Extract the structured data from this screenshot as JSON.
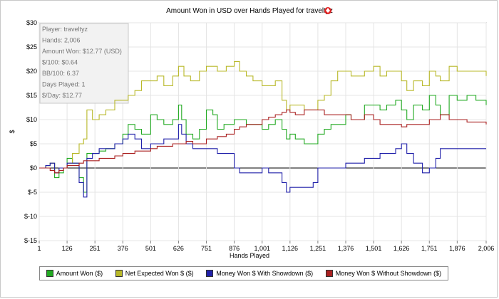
{
  "chart_data": {
    "type": "line",
    "title": "Amount Won in USD over Hands Played for traveltyz",
    "xlabel": "Hands Played",
    "ylabel": "$",
    "xlim": [
      1,
      2006
    ],
    "ylim": [
      -15,
      30
    ],
    "xticks": [
      "1",
      "126",
      "251",
      "376",
      "501",
      "626",
      "751",
      "876",
      "1,001",
      "1,126",
      "1,251",
      "1,376",
      "1,501",
      "1,626",
      "1,751",
      "1,876",
      "2,006"
    ],
    "xtick_values": [
      1,
      126,
      251,
      376,
      501,
      626,
      751,
      876,
      1001,
      1126,
      1251,
      1376,
      1501,
      1626,
      1751,
      1876,
      2006
    ],
    "yticks": [
      "$30",
      "$25",
      "$20",
      "$15",
      "$10",
      "$5",
      "$0",
      "$-5",
      "$-10",
      "$-15"
    ],
    "ytick_values": [
      30,
      25,
      20,
      15,
      10,
      5,
      0,
      -5,
      -10,
      -15
    ],
    "grid": true,
    "legend_position": "bottom",
    "series": [
      {
        "name": "Amount Won ($)",
        "color": "#22aa22",
        "points": [
          [
            1,
            0
          ],
          [
            30,
            0.5
          ],
          [
            50,
            1
          ],
          [
            70,
            -2
          ],
          [
            90,
            -1
          ],
          [
            110,
            0
          ],
          [
            126,
            2
          ],
          [
            150,
            1
          ],
          [
            180,
            -2
          ],
          [
            200,
            -5
          ],
          [
            215,
            3
          ],
          [
            240,
            3
          ],
          [
            270,
            3.5
          ],
          [
            300,
            4
          ],
          [
            340,
            5
          ],
          [
            376,
            7
          ],
          [
            400,
            9
          ],
          [
            430,
            8
          ],
          [
            460,
            7
          ],
          [
            501,
            11
          ],
          [
            530,
            10
          ],
          [
            560,
            9
          ],
          [
            600,
            10
          ],
          [
            626,
            13
          ],
          [
            640,
            10
          ],
          [
            660,
            7
          ],
          [
            690,
            6
          ],
          [
            720,
            8
          ],
          [
            751,
            12
          ],
          [
            780,
            11
          ],
          [
            800,
            8
          ],
          [
            830,
            9
          ],
          [
            876,
            10
          ],
          [
            900,
            10
          ],
          [
            930,
            9
          ],
          [
            960,
            9
          ],
          [
            1001,
            8
          ],
          [
            1030,
            9
          ],
          [
            1060,
            10
          ],
          [
            1090,
            8
          ],
          [
            1110,
            6
          ],
          [
            1126,
            7
          ],
          [
            1150,
            6
          ],
          [
            1190,
            5
          ],
          [
            1230,
            5
          ],
          [
            1251,
            7
          ],
          [
            1280,
            8
          ],
          [
            1310,
            9
          ],
          [
            1340,
            9
          ],
          [
            1376,
            11
          ],
          [
            1400,
            10
          ],
          [
            1430,
            10
          ],
          [
            1460,
            13
          ],
          [
            1501,
            13
          ],
          [
            1530,
            12
          ],
          [
            1560,
            13
          ],
          [
            1600,
            14
          ],
          [
            1626,
            12
          ],
          [
            1650,
            10
          ],
          [
            1680,
            13
          ],
          [
            1720,
            12
          ],
          [
            1751,
            15
          ],
          [
            1780,
            13
          ],
          [
            1800,
            11
          ],
          [
            1840,
            15
          ],
          [
            1876,
            14
          ],
          [
            1920,
            15
          ],
          [
            1960,
            14
          ],
          [
            2006,
            13
          ]
        ]
      },
      {
        "name": "Net Expected Won $ ($)",
        "color": "#b8b828",
        "points": [
          [
            1,
            0
          ],
          [
            30,
            0.5
          ],
          [
            50,
            1
          ],
          [
            70,
            -1
          ],
          [
            90,
            0
          ],
          [
            110,
            0
          ],
          [
            126,
            1
          ],
          [
            150,
            3
          ],
          [
            180,
            5
          ],
          [
            200,
            6
          ],
          [
            215,
            12
          ],
          [
            240,
            10
          ],
          [
            270,
            11
          ],
          [
            300,
            12
          ],
          [
            340,
            14
          ],
          [
            376,
            14
          ],
          [
            400,
            15
          ],
          [
            430,
            16
          ],
          [
            460,
            18
          ],
          [
            501,
            18
          ],
          [
            530,
            19
          ],
          [
            560,
            17
          ],
          [
            600,
            19
          ],
          [
            626,
            21
          ],
          [
            650,
            19
          ],
          [
            680,
            18
          ],
          [
            720,
            20
          ],
          [
            751,
            21
          ],
          [
            780,
            21
          ],
          [
            800,
            20
          ],
          [
            840,
            21
          ],
          [
            876,
            22
          ],
          [
            900,
            20
          ],
          [
            930,
            19
          ],
          [
            960,
            18
          ],
          [
            1001,
            17
          ],
          [
            1030,
            17
          ],
          [
            1060,
            18
          ],
          [
            1090,
            14
          ],
          [
            1110,
            12
          ],
          [
            1126,
            13
          ],
          [
            1150,
            13
          ],
          [
            1190,
            12
          ],
          [
            1230,
            12
          ],
          [
            1251,
            14
          ],
          [
            1280,
            15
          ],
          [
            1310,
            18
          ],
          [
            1340,
            20
          ],
          [
            1376,
            20
          ],
          [
            1400,
            19
          ],
          [
            1430,
            19
          ],
          [
            1460,
            20
          ],
          [
            1501,
            21
          ],
          [
            1530,
            19
          ],
          [
            1560,
            20
          ],
          [
            1600,
            20
          ],
          [
            1626,
            18
          ],
          [
            1650,
            16
          ],
          [
            1680,
            18
          ],
          [
            1720,
            17
          ],
          [
            1751,
            20
          ],
          [
            1780,
            19
          ],
          [
            1800,
            18
          ],
          [
            1840,
            21
          ],
          [
            1876,
            20
          ],
          [
            1920,
            20
          ],
          [
            1960,
            20
          ],
          [
            2006,
            19
          ]
        ]
      },
      {
        "name": "Money Won $ With Showdown ($)",
        "color": "#2020aa",
        "points": [
          [
            1,
            0
          ],
          [
            30,
            0.5
          ],
          [
            50,
            1
          ],
          [
            70,
            -1
          ],
          [
            90,
            0
          ],
          [
            110,
            0
          ],
          [
            126,
            1
          ],
          [
            150,
            1
          ],
          [
            180,
            -3
          ],
          [
            200,
            -6
          ],
          [
            215,
            2
          ],
          [
            240,
            3
          ],
          [
            270,
            4
          ],
          [
            300,
            4
          ],
          [
            340,
            5
          ],
          [
            376,
            6
          ],
          [
            400,
            7
          ],
          [
            430,
            6
          ],
          [
            460,
            4
          ],
          [
            501,
            5
          ],
          [
            530,
            5
          ],
          [
            560,
            6
          ],
          [
            600,
            6
          ],
          [
            626,
            9
          ],
          [
            640,
            7
          ],
          [
            660,
            5
          ],
          [
            690,
            4
          ],
          [
            720,
            4
          ],
          [
            751,
            4
          ],
          [
            780,
            4
          ],
          [
            800,
            3
          ],
          [
            840,
            3
          ],
          [
            876,
            0
          ],
          [
            900,
            -1
          ],
          [
            930,
            -1
          ],
          [
            960,
            -1
          ],
          [
            1001,
            0
          ],
          [
            1030,
            -1
          ],
          [
            1060,
            -1
          ],
          [
            1090,
            -3
          ],
          [
            1110,
            -5
          ],
          [
            1126,
            -4
          ],
          [
            1150,
            -4
          ],
          [
            1190,
            -4
          ],
          [
            1230,
            -3
          ],
          [
            1251,
            0
          ],
          [
            1280,
            0
          ],
          [
            1310,
            0
          ],
          [
            1340,
            0
          ],
          [
            1376,
            1
          ],
          [
            1400,
            1
          ],
          [
            1430,
            1
          ],
          [
            1460,
            2
          ],
          [
            1501,
            2
          ],
          [
            1530,
            3
          ],
          [
            1560,
            3
          ],
          [
            1600,
            4
          ],
          [
            1626,
            5
          ],
          [
            1650,
            3
          ],
          [
            1680,
            1
          ],
          [
            1720,
            -1
          ],
          [
            1751,
            0
          ],
          [
            1780,
            2
          ],
          [
            1800,
            4
          ],
          [
            1840,
            4
          ],
          [
            1876,
            4
          ],
          [
            1920,
            4
          ],
          [
            1960,
            4
          ],
          [
            2006,
            4
          ]
        ]
      },
      {
        "name": "Money Won $ Without Showdown ($)",
        "color": "#aa2020",
        "points": [
          [
            1,
            0
          ],
          [
            30,
            0
          ],
          [
            50,
            -0.5
          ],
          [
            70,
            -1
          ],
          [
            90,
            -0.5
          ],
          [
            110,
            0
          ],
          [
            126,
            0.5
          ],
          [
            150,
            0.5
          ],
          [
            180,
            1
          ],
          [
            200,
            1.5
          ],
          [
            215,
            1.5
          ],
          [
            240,
            1.5
          ],
          [
            270,
            2
          ],
          [
            300,
            2
          ],
          [
            340,
            2.5
          ],
          [
            376,
            3
          ],
          [
            400,
            3
          ],
          [
            430,
            3.5
          ],
          [
            460,
            3.5
          ],
          [
            501,
            4
          ],
          [
            530,
            4.5
          ],
          [
            560,
            4.5
          ],
          [
            600,
            5
          ],
          [
            626,
            5
          ],
          [
            660,
            5.5
          ],
          [
            690,
            5
          ],
          [
            720,
            5
          ],
          [
            751,
            6
          ],
          [
            780,
            6
          ],
          [
            800,
            6.5
          ],
          [
            840,
            7
          ],
          [
            876,
            8
          ],
          [
            900,
            8.5
          ],
          [
            930,
            9
          ],
          [
            960,
            9
          ],
          [
            1001,
            10
          ],
          [
            1030,
            10.5
          ],
          [
            1060,
            11
          ],
          [
            1090,
            11.5
          ],
          [
            1110,
            12
          ],
          [
            1126,
            11.5
          ],
          [
            1150,
            11
          ],
          [
            1190,
            12
          ],
          [
            1230,
            12
          ],
          [
            1251,
            12
          ],
          [
            1280,
            11
          ],
          [
            1310,
            11
          ],
          [
            1340,
            11
          ],
          [
            1376,
            11
          ],
          [
            1400,
            10
          ],
          [
            1430,
            10
          ],
          [
            1460,
            11
          ],
          [
            1501,
            10
          ],
          [
            1530,
            9
          ],
          [
            1560,
            9
          ],
          [
            1600,
            9
          ],
          [
            1626,
            8.5
          ],
          [
            1650,
            9
          ],
          [
            1680,
            9
          ],
          [
            1720,
            9
          ],
          [
            1751,
            10
          ],
          [
            1780,
            10
          ],
          [
            1800,
            11
          ],
          [
            1840,
            10
          ],
          [
            1876,
            10
          ],
          [
            1920,
            9.5
          ],
          [
            1960,
            9.5
          ],
          [
            2006,
            9
          ]
        ]
      }
    ]
  },
  "stats": {
    "player": "Player: traveltyz",
    "hands": "Hands: 2,006",
    "amount_won": "Amount Won: $12.77 (USD)",
    "per100": "$/100: $0.64",
    "bb100": "BB/100: 6.37",
    "days": "Days Played: 1",
    "per_day": "$/Day: $12.77"
  },
  "legend": {
    "amount_won": "Amount Won ($)",
    "net_expected": "Net Expected Won $ ($)",
    "with_showdown": "Money Won $ With Showdown ($)",
    "without_showdown": "Money Won $ Without Showdown ($)"
  },
  "colors": {
    "amount_won": "#22aa22",
    "net_expected": "#b8b828",
    "with_showdown": "#2020aa",
    "without_showdown": "#aa2020"
  }
}
